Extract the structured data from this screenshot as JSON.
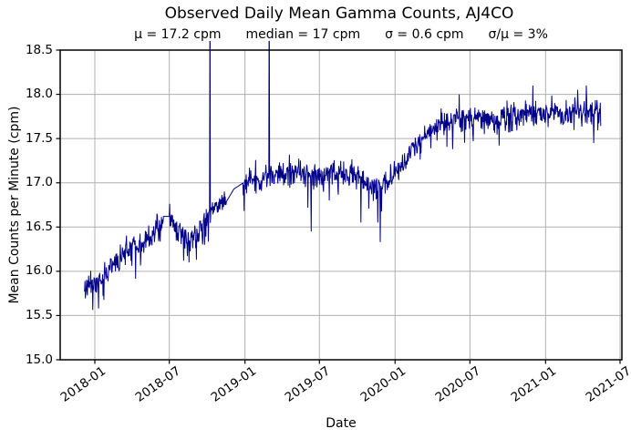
{
  "chart_data": {
    "type": "line",
    "title": "Observed Daily Mean Gamma Counts, AJ4CO",
    "stats": [
      "μ = 17.2 cpm",
      "median = 17 cpm",
      "σ = 0.6 cpm",
      "σ/μ = 3%"
    ],
    "xlabel": "Date",
    "ylabel": "Mean Counts per Minute (cpm)",
    "series_name": "observed daily mean gamma counts",
    "ylim": [
      15.0,
      18.5
    ],
    "yticks": [
      "15.0",
      "15.5",
      "16.0",
      "16.5",
      "17.0",
      "17.5",
      "18.0",
      "18.5"
    ],
    "xticks": [
      "2018-01",
      "2018-07",
      "2019-01",
      "2019-07",
      "2020-01",
      "2020-07",
      "2021-01",
      "2021-07"
    ],
    "x_start": "2017-12-07",
    "x_end": "2021-05-15",
    "grid": true,
    "legend": "none",
    "line_color": "#00008B",
    "grid_color": "#b0b0b0",
    "trend": [
      [
        "2017-12-07",
        15.85
      ],
      [
        "2018-01-01",
        15.83
      ],
      [
        "2018-01-25",
        15.95
      ],
      [
        "2018-02-20",
        16.08
      ],
      [
        "2018-03-20",
        16.22
      ],
      [
        "2018-04-20",
        16.3
      ],
      [
        "2018-05-20",
        16.38
      ],
      [
        "2018-06-10",
        16.5
      ],
      [
        "2018-06-16",
        16.62
      ],
      [
        "2018-07-02",
        16.62
      ],
      [
        "2018-07-20",
        16.45
      ],
      [
        "2018-08-15",
        16.36
      ],
      [
        "2018-09-10",
        16.42
      ],
      [
        "2018-10-01",
        16.6
      ],
      [
        "2018-10-20",
        16.72
      ],
      [
        "2018-11-16",
        16.78
      ],
      [
        "2018-12-05",
        16.93
      ],
      [
        "2018-12-28",
        17.0
      ],
      [
        "2019-02-01",
        17.02
      ],
      [
        "2019-03-15",
        17.08
      ],
      [
        "2019-05-01",
        17.12
      ],
      [
        "2019-06-15",
        17.08
      ],
      [
        "2019-08-01",
        17.1
      ],
      [
        "2019-09-15",
        17.12
      ],
      [
        "2019-10-20",
        17.0
      ],
      [
        "2019-11-20",
        16.95
      ],
      [
        "2019-12-15",
        17.02
      ],
      [
        "2020-01-10",
        17.15
      ],
      [
        "2020-02-10",
        17.35
      ],
      [
        "2020-03-10",
        17.52
      ],
      [
        "2020-04-15",
        17.65
      ],
      [
        "2020-06-01",
        17.72
      ],
      [
        "2020-09-01",
        17.73
      ],
      [
        "2020-12-01",
        17.78
      ],
      [
        "2021-03-01",
        17.8
      ],
      [
        "2021-05-15",
        17.8
      ]
    ],
    "gaps": [
      [
        "2018-06-16",
        "2018-07-02"
      ],
      [
        "2018-11-16",
        "2018-12-28"
      ]
    ],
    "spikes_offscale": [
      [
        "2018-10-08",
        19.4
      ],
      [
        "2019-03-01",
        19.4
      ]
    ],
    "events": [
      [
        "2018-01-10",
        15.58
      ],
      [
        "2018-08-05",
        16.12
      ],
      [
        "2018-08-18",
        16.1
      ],
      [
        "2018-09-05",
        16.13
      ],
      [
        "2018-09-25",
        16.3
      ],
      [
        "2019-06-11",
        16.45
      ],
      [
        "2019-07-25",
        16.8
      ],
      [
        "2019-10-10",
        16.55
      ],
      [
        "2019-11-20",
        16.55
      ],
      [
        "2019-11-26",
        16.33
      ],
      [
        "2020-06-05",
        18.0
      ],
      [
        "2020-09-10",
        17.42
      ],
      [
        "2020-12-01",
        18.1
      ],
      [
        "2021-03-20",
        18.05
      ],
      [
        "2021-04-10",
        18.1
      ],
      [
        "2021-04-28",
        17.45
      ]
    ],
    "noise": {
      "sd": 0.07,
      "down_tail_prob": 0.05,
      "down_tail_max": 0.3,
      "seed": 11
    }
  }
}
